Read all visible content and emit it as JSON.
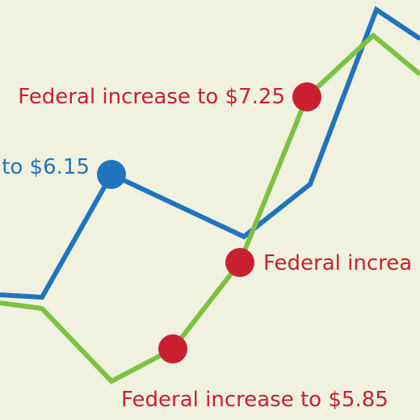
{
  "colors": {
    "background": "#f0f2df",
    "blue": "#1f74bd",
    "green": "#7cc242",
    "red": "#c8202f"
  },
  "chart_data": {
    "type": "line",
    "title": "",
    "xlabel": "",
    "ylabel": "",
    "grid": false,
    "legend": "none",
    "x": [
      0,
      1,
      2,
      3,
      4,
      5,
      6,
      7,
      8
    ],
    "series": [
      {
        "color": "#1f74bd",
        "values": [
          5.2,
          5.15,
          6.15,
          5.75,
          6.0,
          7.45,
          7.3,
          null,
          null
        ]
      },
      {
        "color": "#7cc242",
        "values": [
          5.2,
          5.15,
          4.8,
          5.85,
          6.45,
          7.25,
          7.4,
          7.15,
          null
        ]
      }
    ],
    "annotations": [
      {
        "text": "Federal increase to $7.25",
        "color": "#c8202f"
      },
      {
        "text": "to $6.15",
        "color": "#1f74bd"
      },
      {
        "text": "Federal increa",
        "color": "#c8202f"
      },
      {
        "text": "Federal increase to $5.85",
        "color": "#c8202f"
      }
    ]
  }
}
